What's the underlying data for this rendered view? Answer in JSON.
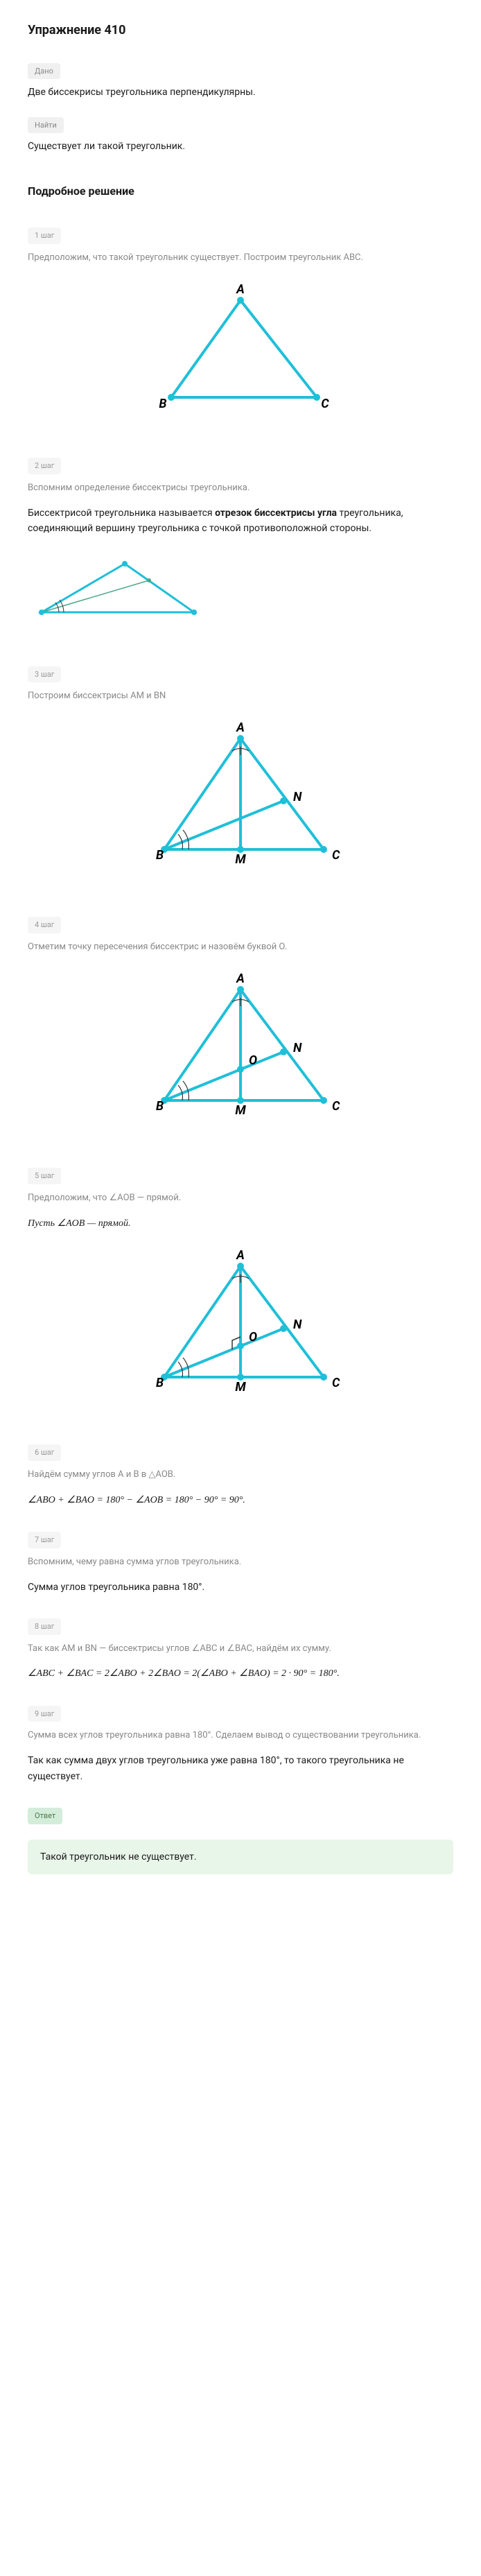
{
  "title": "Упражнение 410",
  "given_badge": "Дано",
  "given_text": "Две биссекрисы треугольника перпендикулярны.",
  "find_badge": "Найти",
  "find_text": "Существует ли такой треугольник.",
  "solution_title": "Подробное решение",
  "steps": [
    {
      "badge": "1 шаг",
      "gray": "Предположим, что такой треугольник существует. Построим треугольник ABC."
    },
    {
      "badge": "2 шаг",
      "gray": "Вспомним определение биссектрисы треугольника.",
      "content_html": "Биссектрисой треугольника называется <b>отрезок биссектрисы угла</b> треугольника, соединяющий вершину треугольника с точкой противоположной стороны."
    },
    {
      "badge": "3 шаг",
      "gray": "Построим биссектрисы AM и BN"
    },
    {
      "badge": "4 шаг",
      "gray": "Отметим точку пересечения биссектрис и назовём буквой O."
    },
    {
      "badge": "5 шаг",
      "gray": "Предположим, что ∠AOB — прямой.",
      "content": "Пусть ∠AOB — прямой."
    },
    {
      "badge": "6 шаг",
      "gray": "Найдём сумму углов A и B в △AOB.",
      "math": "∠ABO + ∠BAO = 180° − ∠AOB = 180° − 90° = 90°."
    },
    {
      "badge": "7 шаг",
      "gray": "Вспомним, чему равна сумма углов треугольника.",
      "content": "Сумма углов треугольника равна 180°."
    },
    {
      "badge": "8 шаг",
      "gray": "Так как AM и BN — биссектрисы углов ∠ABC и ∠BAC, найдём их сумму.",
      "math": "∠ABC + ∠BAC = 2∠ABO + 2∠BAO = 2(∠ABO + ∠BAO) = 2 · 90° = 180°."
    },
    {
      "badge": "9 шаг",
      "gray": "Сумма всех углов треугольника равна 180°. Сделаем вывод о существовании треугольника.",
      "content": "Так как сумма двух углов треугольника уже равна 180°, то такого треугольника не существует."
    }
  ],
  "answer_badge": "Ответ",
  "answer_text": "Такой треугольник не существует.",
  "svg": {
    "stroke": "#1fbfd8",
    "fill": "#1fbfd8",
    "thin": "#4aa88a",
    "label_color": "#000000"
  }
}
